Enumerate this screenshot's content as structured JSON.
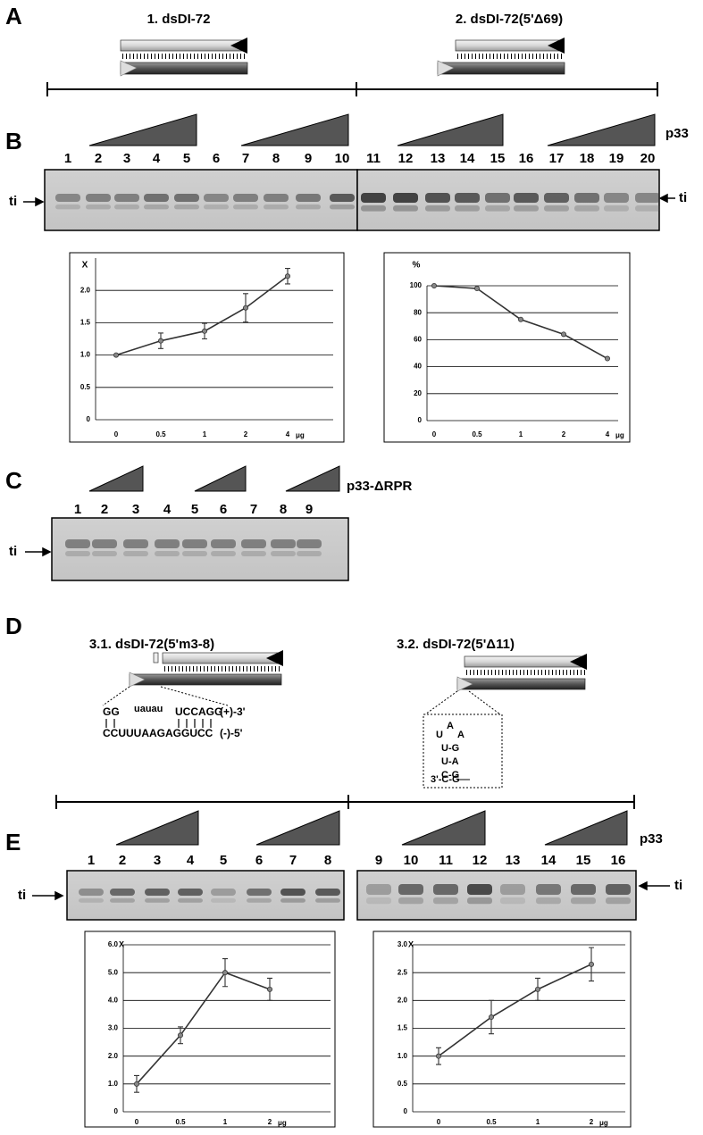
{
  "figure": {
    "panel_labels": [
      "A",
      "B",
      "C",
      "D",
      "E"
    ],
    "a": {
      "constructs": [
        "1. dsDI-72",
        "2. dsDI-72(5'Δ69)"
      ]
    },
    "b": {
      "protein": "p33",
      "band_label": "ti",
      "lanes": [
        "1",
        "2",
        "3",
        "4",
        "5",
        "6",
        "7",
        "8",
        "9",
        "10",
        "11",
        "12",
        "13",
        "14",
        "15",
        "16",
        "17",
        "18",
        "19",
        "20"
      ]
    },
    "c": {
      "protein": "p33-ΔRPR",
      "band_label": "ti",
      "lanes": [
        "1",
        "2",
        "3",
        "4",
        "5",
        "6",
        "7",
        "8",
        "9"
      ]
    },
    "d": {
      "constructs": [
        "3.1. dsDI-72(5'm3-8)",
        "3.2. dsDI-72(5'Δ11)"
      ],
      "sequence": {
        "top": [
          "GG",
          "uauau",
          "UCCAGG",
          "(+)-3'"
        ],
        "bottom": [
          "CCUUUAAGAGGUCC",
          "(-)-5'"
        ]
      },
      "stem_loop": [
        "U",
        "A",
        "A",
        "U-G",
        "U-A",
        "C-G",
        "3'-C-G"
      ]
    },
    "e": {
      "protein": "p33",
      "band_label": "ti",
      "lanes": [
        "1",
        "2",
        "3",
        "4",
        "5",
        "6",
        "7",
        "8",
        "9",
        "10",
        "11",
        "12",
        "13",
        "14",
        "15",
        "16"
      ]
    }
  },
  "chart_data": [
    {
      "type": "line",
      "y_label": "X",
      "x_unit": "μg",
      "categories": [
        "0",
        "0.5",
        "1",
        "2",
        "4"
      ],
      "values": [
        1.0,
        1.22,
        1.37,
        1.73,
        2.22
      ],
      "errors": [
        0,
        0.12,
        0.12,
        0.22,
        0.12
      ],
      "color": "#333333",
      "ylim": [
        0,
        2.5
      ],
      "yticks": [
        0,
        0.5,
        {
          "value": 1,
          "label": "1.0"
        },
        1.5,
        {
          "value": 2,
          "label": "2.0"
        }
      ],
      "grid": true
    },
    {
      "type": "line",
      "y_label": "%",
      "x_unit": "μg",
      "categories": [
        "0",
        "0.5",
        "1",
        "2",
        "4"
      ],
      "values": [
        100,
        98,
        75,
        64,
        46
      ],
      "color": "#333333",
      "ylim": [
        0,
        100
      ],
      "yticks": [
        0,
        20,
        40,
        60,
        80,
        100
      ],
      "grid": true
    },
    {
      "type": "line",
      "y_label": "X",
      "x_unit": "μg",
      "categories": [
        "0",
        "0.5",
        "1",
        "2"
      ],
      "values": [
        1.0,
        2.75,
        5.0,
        4.4
      ],
      "errors": [
        0.3,
        0.3,
        0.5,
        0.4
      ],
      "color": "#333333",
      "ylim": [
        0,
        6
      ],
      "yticks": [
        0,
        {
          "value": 1,
          "label": "1.0"
        },
        {
          "value": 2,
          "label": "2.0"
        },
        {
          "value": 3,
          "label": "3.0"
        },
        {
          "value": 4,
          "label": "4.0"
        },
        {
          "value": 5,
          "label": "5.0"
        },
        {
          "value": 6,
          "label": "6.0"
        }
      ],
      "grid": true
    },
    {
      "type": "line",
      "y_label": "X",
      "x_unit": "μg",
      "categories": [
        "0",
        "0.5",
        "1",
        "2"
      ],
      "values": [
        1.0,
        1.7,
        2.2,
        2.65
      ],
      "errors": [
        0.15,
        0.3,
        0.2,
        0.3
      ],
      "color": "#333333",
      "ylim": [
        0,
        3
      ],
      "yticks": [
        0,
        0.5,
        {
          "value": 1,
          "label": "1.0"
        },
        1.5,
        {
          "value": 2,
          "label": "2.0"
        },
        2.5,
        {
          "value": 3,
          "label": "3.0"
        }
      ],
      "grid": true
    }
  ]
}
